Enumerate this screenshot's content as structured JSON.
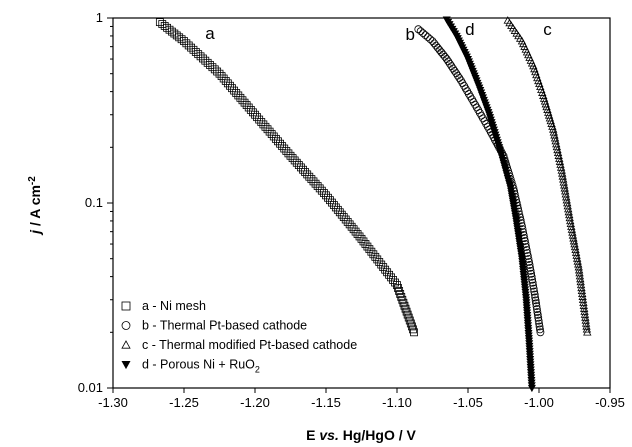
{
  "chart_data": {
    "type": "scatter",
    "xlim": [
      -1.3,
      -0.95
    ],
    "ylim": [
      0.01,
      1
    ],
    "y_scale": "log",
    "grid": false,
    "legend_position": "bottom-left",
    "x_ticks": [
      "-1.30",
      "-1.25",
      "-1.20",
      "-1.15",
      "-1.10",
      "-1.05",
      "-1.00",
      "-0.95"
    ],
    "x_tick_values": [
      -1.3,
      -1.25,
      -1.2,
      -1.15,
      -1.1,
      -1.05,
      -1.0,
      -0.95
    ],
    "y_ticks": [
      "0.01",
      "0.1",
      "1"
    ],
    "y_tick_values": [
      0.01,
      0.1,
      1
    ],
    "series": [
      {
        "key": "a",
        "name": "a - Ni mesh",
        "marker": "square",
        "points": [
          [
            -1.267,
            0.95
          ],
          [
            -1.25,
            0.75
          ],
          [
            -1.225,
            0.5
          ],
          [
            -1.2,
            0.3
          ],
          [
            -1.175,
            0.18
          ],
          [
            -1.15,
            0.11
          ],
          [
            -1.125,
            0.064
          ],
          [
            -1.1,
            0.036
          ],
          [
            -1.088,
            0.02
          ]
        ]
      },
      {
        "key": "b",
        "name": "b - Thermal Pt-based cathode",
        "marker": "circle",
        "points": [
          [
            -1.085,
            0.87
          ],
          [
            -1.075,
            0.75
          ],
          [
            -1.065,
            0.6
          ],
          [
            -1.055,
            0.46
          ],
          [
            -1.045,
            0.34
          ],
          [
            -1.035,
            0.25
          ],
          [
            -1.025,
            0.18
          ],
          [
            -1.018,
            0.12
          ],
          [
            -1.012,
            0.075
          ],
          [
            -1.007,
            0.048
          ],
          [
            -1.003,
            0.032
          ],
          [
            -0.999,
            0.02
          ]
        ]
      },
      {
        "key": "c",
        "name": "c - Thermal modified Pt-based cathode",
        "marker": "triangle",
        "points": [
          [
            -1.022,
            0.97
          ],
          [
            -1.012,
            0.75
          ],
          [
            -1.004,
            0.55
          ],
          [
            -0.997,
            0.38
          ],
          [
            -0.99,
            0.25
          ],
          [
            -0.984,
            0.15
          ],
          [
            -0.978,
            0.08
          ],
          [
            -0.972,
            0.045
          ],
          [
            -0.966,
            0.02
          ]
        ]
      },
      {
        "key": "d",
        "name": "d - Porous Ni + RuO2",
        "marker": "triangle-down",
        "points": [
          [
            -1.065,
            0.98
          ],
          [
            -1.058,
            0.8
          ],
          [
            -1.05,
            0.6
          ],
          [
            -1.042,
            0.42
          ],
          [
            -1.035,
            0.3
          ],
          [
            -1.028,
            0.2
          ],
          [
            -1.02,
            0.12
          ],
          [
            -1.016,
            0.08
          ],
          [
            -1.012,
            0.05
          ],
          [
            -1.009,
            0.03
          ],
          [
            -1.007,
            0.018
          ],
          [
            -1.005,
            0.01
          ]
        ]
      }
    ],
    "series_labels": [
      "a",
      "b",
      "c",
      "d"
    ],
    "xlabel": "E vs. Hg/HgO / V",
    "ylabel": "j / A cm-2"
  }
}
